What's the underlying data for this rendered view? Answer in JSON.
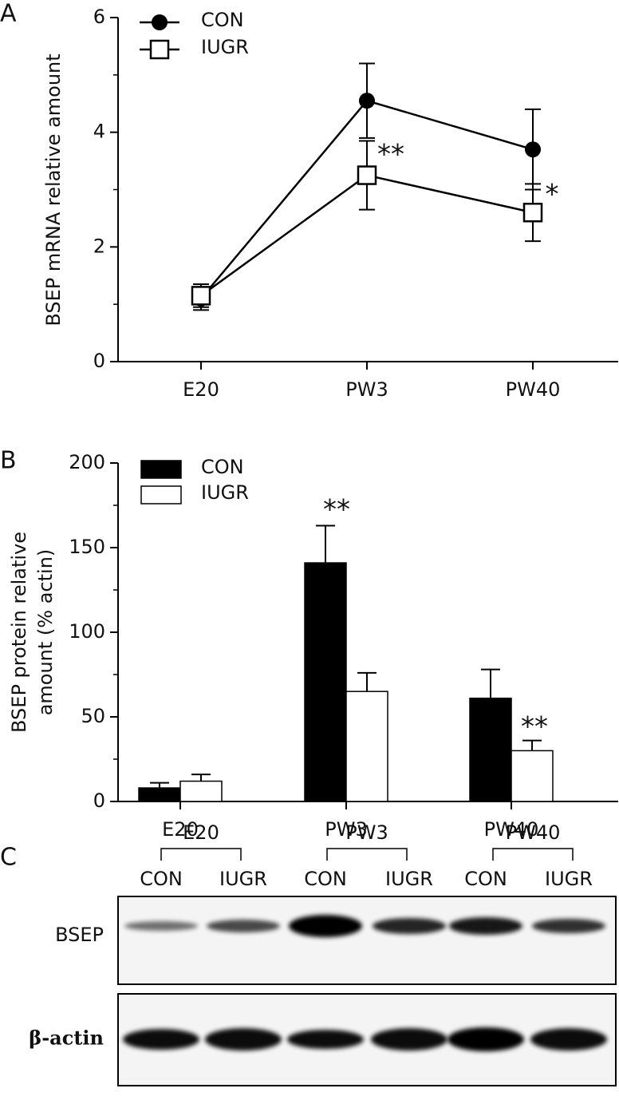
{
  "chart_data": [
    {
      "type": "line",
      "panel_label": "A",
      "ylabel": "BSEP mRNA relative amount",
      "categories": [
        "E20",
        "PW3",
        "PW40"
      ],
      "series": [
        {
          "name": "CON",
          "color": "#000000",
          "marker": "circle",
          "values": [
            1.1,
            4.55,
            3.7
          ],
          "errors": [
            0.2,
            0.65,
            0.7
          ]
        },
        {
          "name": "IUGR",
          "color": "#000000",
          "marker": "square",
          "values": [
            1.15,
            3.25,
            2.6
          ],
          "errors": [
            0.2,
            0.6,
            0.5
          ]
        }
      ],
      "ylim": [
        0,
        6
      ],
      "yticks": [
        0,
        2,
        4,
        6
      ],
      "yticks_minor": [
        1,
        3,
        5
      ],
      "annotations": [
        "**",
        "*"
      ]
    },
    {
      "type": "bar",
      "panel_label": "B",
      "ylabel": [
        "BSEP protein relative",
        "amount (% actin)"
      ],
      "categories": [
        "E20",
        "PW3",
        "PW40"
      ],
      "series": [
        {
          "name": "CON",
          "color": "#000000",
          "values": [
            8,
            141,
            61
          ],
          "errors": [
            3,
            22,
            17
          ]
        },
        {
          "name": "IUGR",
          "color": "#ffffff",
          "values": [
            12,
            65,
            30
          ],
          "errors": [
            4,
            11,
            6
          ]
        }
      ],
      "ylim": [
        0,
        200
      ],
      "yticks": [
        0,
        50,
        100,
        150,
        200
      ],
      "yticks_minor": [
        25,
        75,
        125,
        175
      ],
      "annotations": [
        "**",
        "**"
      ]
    }
  ],
  "blot": {
    "panel_label": "C",
    "groups": [
      "E20",
      "PW3",
      "PW40"
    ],
    "lanes": [
      "CON",
      "IUGR",
      "CON",
      "IUGR",
      "CON",
      "IUGR"
    ],
    "rows": [
      "BSEP",
      "β-actin"
    ]
  }
}
